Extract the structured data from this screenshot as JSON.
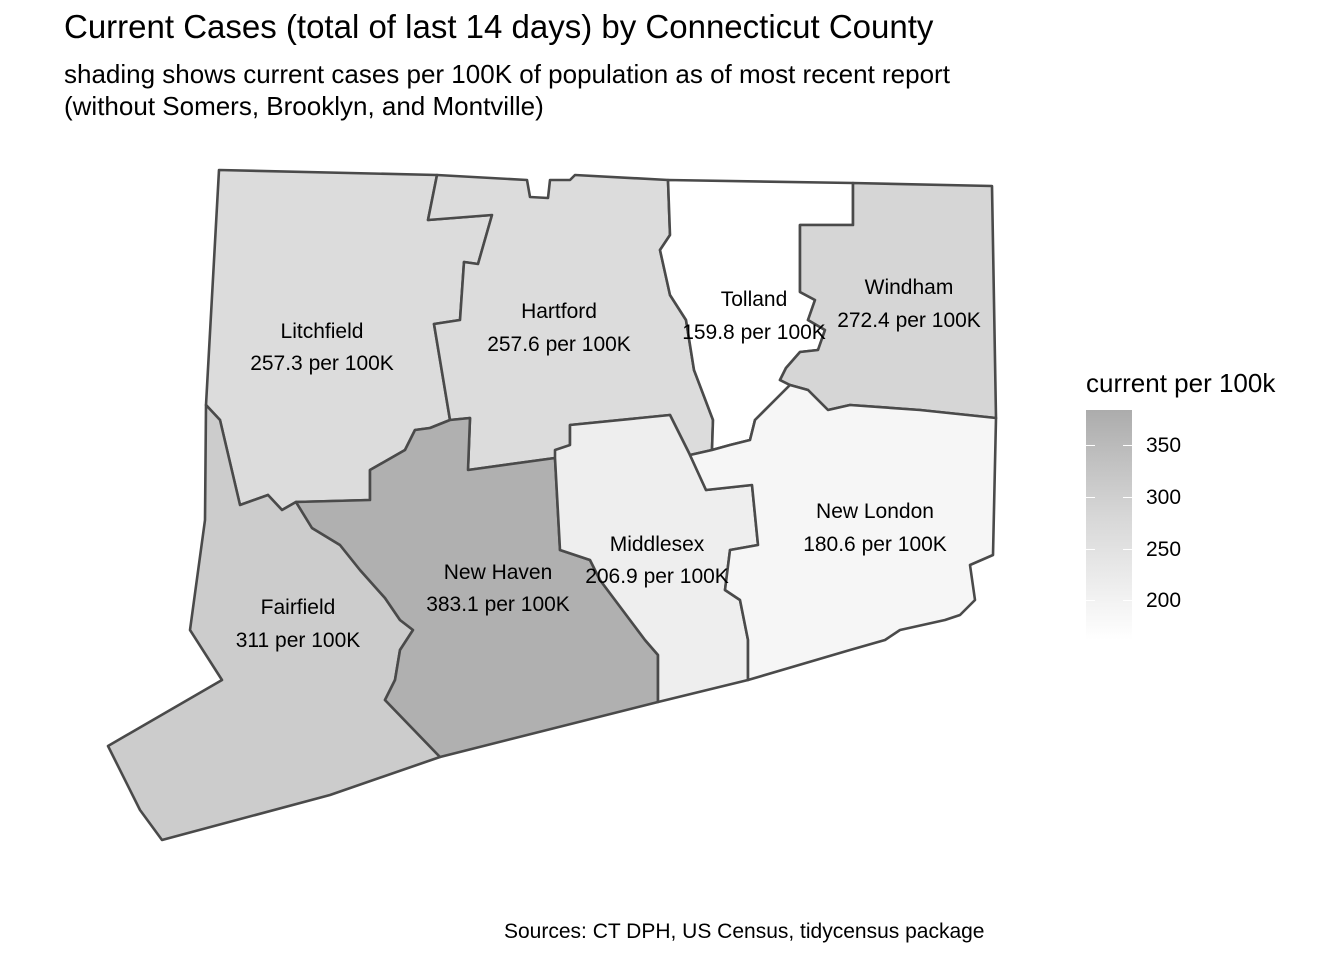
{
  "title": "Current Cases (total of last 14 days) by Connecticut County",
  "subtitle_line1": "shading shows current cases per 100K of population as of most recent report",
  "subtitle_line2": "(without Somers, Brooklyn, and Montville)",
  "caption": "Sources: CT DPH, US Census, tidycensus package",
  "legend": {
    "title": "current per 100k",
    "ticks": [
      "350",
      "300",
      "250",
      "200"
    ],
    "colors": {
      "high": "#acacac",
      "low": "#ffffff"
    }
  },
  "counties": [
    {
      "name": "Litchfield",
      "value_label": "257.3 per 100K",
      "value": 257.3,
      "fill": "#dcdcdc"
    },
    {
      "name": "Hartford",
      "value_label": "257.6 per 100K",
      "value": 257.6,
      "fill": "#dcdcdc"
    },
    {
      "name": "Tolland",
      "value_label": "159.8 per 100K",
      "value": 159.8,
      "fill": "#ffffff"
    },
    {
      "name": "Windham",
      "value_label": "272.4 per 100K",
      "value": 272.4,
      "fill": "#d6d6d6"
    },
    {
      "name": "Fairfield",
      "value_label": "311 per 100K",
      "value": 311,
      "fill": "#cccccc"
    },
    {
      "name": "New Haven",
      "value_label": "383.1 per 100K",
      "value": 383.1,
      "fill": "#b0b0b0"
    },
    {
      "name": "Middlesex",
      "value_label": "206.9 per 100K",
      "value": 206.9,
      "fill": "#eeeeee"
    },
    {
      "name": "New London",
      "value_label": "180.6 per 100K",
      "value": 180.6,
      "fill": "#f6f6f6"
    }
  ]
}
